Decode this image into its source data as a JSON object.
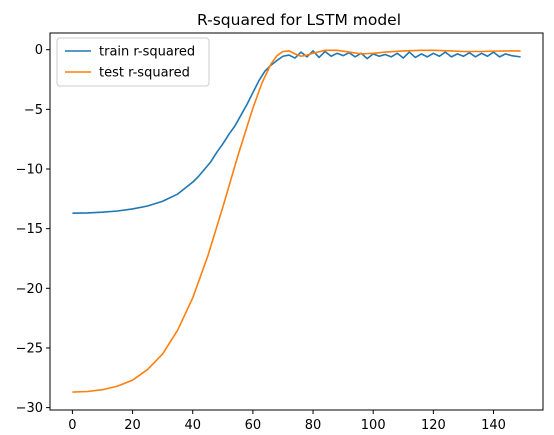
{
  "chart_data": {
    "type": "line",
    "title": "R-squared for LSTM model",
    "xlabel": "",
    "ylabel": "",
    "xlim": [
      -7.45,
      156.45
    ],
    "ylim": [
      -30.2,
      1.4
    ],
    "xticks": [
      0,
      20,
      40,
      60,
      80,
      100,
      120,
      140
    ],
    "yticks": [
      -30,
      -25,
      -20,
      -15,
      -10,
      -5,
      0
    ],
    "grid": false,
    "legend_position": "upper-left",
    "series": [
      {
        "name": "train r-squared",
        "color": "#1f77b4",
        "points": [
          [
            0,
            -13.7
          ],
          [
            5,
            -13.68
          ],
          [
            10,
            -13.62
          ],
          [
            15,
            -13.52
          ],
          [
            20,
            -13.35
          ],
          [
            25,
            -13.1
          ],
          [
            30,
            -12.7
          ],
          [
            35,
            -12.1
          ],
          [
            38,
            -11.5
          ],
          [
            40,
            -11.1
          ],
          [
            42,
            -10.6
          ],
          [
            44,
            -10.0
          ],
          [
            46,
            -9.4
          ],
          [
            48,
            -8.6
          ],
          [
            50,
            -7.9
          ],
          [
            52,
            -7.1
          ],
          [
            54,
            -6.4
          ],
          [
            56,
            -5.5
          ],
          [
            58,
            -4.6
          ],
          [
            60,
            -3.6
          ],
          [
            62,
            -2.6
          ],
          [
            64,
            -1.8
          ],
          [
            66,
            -1.3
          ],
          [
            68,
            -0.9
          ],
          [
            70,
            -0.55
          ],
          [
            72,
            -0.45
          ],
          [
            74,
            -0.7
          ],
          [
            76,
            -0.2
          ],
          [
            78,
            -0.6
          ],
          [
            80,
            -0.1
          ],
          [
            82,
            -0.65
          ],
          [
            84,
            -0.15
          ],
          [
            86,
            -0.55
          ],
          [
            88,
            -0.3
          ],
          [
            90,
            -0.5
          ],
          [
            92,
            -0.25
          ],
          [
            94,
            -0.6
          ],
          [
            96,
            -0.3
          ],
          [
            98,
            -0.75
          ],
          [
            100,
            -0.35
          ],
          [
            102,
            -0.55
          ],
          [
            104,
            -0.4
          ],
          [
            106,
            -0.6
          ],
          [
            108,
            -0.3
          ],
          [
            110,
            -0.7
          ],
          [
            112,
            -0.2
          ],
          [
            114,
            -0.65
          ],
          [
            116,
            -0.35
          ],
          [
            118,
            -0.6
          ],
          [
            120,
            -0.3
          ],
          [
            122,
            -0.55
          ],
          [
            124,
            -0.2
          ],
          [
            126,
            -0.6
          ],
          [
            128,
            -0.35
          ],
          [
            130,
            -0.55
          ],
          [
            132,
            -0.25
          ],
          [
            134,
            -0.6
          ],
          [
            136,
            -0.3
          ],
          [
            138,
            -0.55
          ],
          [
            140,
            -0.2
          ],
          [
            142,
            -0.6
          ],
          [
            144,
            -0.35
          ],
          [
            146,
            -0.5
          ],
          [
            149,
            -0.6
          ]
        ]
      },
      {
        "name": "test r-squared",
        "color": "#ff7f0e",
        "points": [
          [
            0,
            -28.7
          ],
          [
            5,
            -28.65
          ],
          [
            10,
            -28.5
          ],
          [
            15,
            -28.2
          ],
          [
            20,
            -27.7
          ],
          [
            25,
            -26.8
          ],
          [
            30,
            -25.5
          ],
          [
            35,
            -23.5
          ],
          [
            40,
            -20.8
          ],
          [
            45,
            -17.3
          ],
          [
            50,
            -13.2
          ],
          [
            55,
            -8.9
          ],
          [
            60,
            -4.9
          ],
          [
            63,
            -2.8
          ],
          [
            66,
            -1.2
          ],
          [
            68,
            -0.5
          ],
          [
            70,
            -0.15
          ],
          [
            72,
            -0.1
          ],
          [
            74,
            -0.35
          ],
          [
            76,
            -0.55
          ],
          [
            78,
            -0.45
          ],
          [
            80,
            -0.3
          ],
          [
            84,
            -0.05
          ],
          [
            88,
            -0.05
          ],
          [
            92,
            -0.2
          ],
          [
            96,
            -0.35
          ],
          [
            100,
            -0.3
          ],
          [
            104,
            -0.2
          ],
          [
            110,
            -0.1
          ],
          [
            116,
            -0.05
          ],
          [
            120,
            -0.05
          ],
          [
            126,
            -0.1
          ],
          [
            130,
            -0.15
          ],
          [
            136,
            -0.15
          ],
          [
            140,
            -0.12
          ],
          [
            145,
            -0.1
          ],
          [
            149,
            -0.1
          ]
        ]
      }
    ]
  }
}
